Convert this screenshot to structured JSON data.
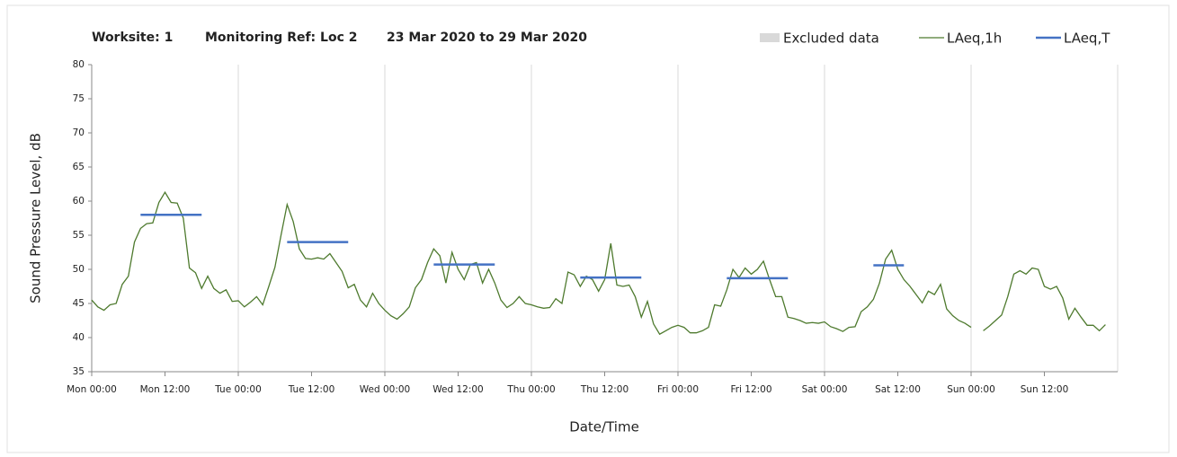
{
  "chart_data": {
    "type": "line",
    "title": [
      "Worksite: 1",
      "Monitoring Ref: Loc 2",
      "23 Mar 2020 to 29 Mar 2020"
    ],
    "xlabel": "Date/Time",
    "ylabel": "Sound Pressure Level, dB",
    "xlim": [
      0,
      168
    ],
    "xticks": [
      {
        "value": 0,
        "label": "Mon 00:00"
      },
      {
        "value": 12,
        "label": "Mon 12:00"
      },
      {
        "value": 24,
        "label": "Tue 00:00"
      },
      {
        "value": 36,
        "label": "Tue 12:00"
      },
      {
        "value": 48,
        "label": "Wed 00:00"
      },
      {
        "value": 60,
        "label": "Wed 12:00"
      },
      {
        "value": 72,
        "label": "Thu 00:00"
      },
      {
        "value": 84,
        "label": "Thu 12:00"
      },
      {
        "value": 96,
        "label": "Fri 00:00"
      },
      {
        "value": 108,
        "label": "Fri 12:00"
      },
      {
        "value": 120,
        "label": "Sat 00:00"
      },
      {
        "value": 132,
        "label": "Sat 12:00"
      },
      {
        "value": 144,
        "label": "Sun 00:00"
      },
      {
        "value": 156,
        "label": "Sun 12:00"
      }
    ],
    "ylim": [
      35,
      80
    ],
    "yticks": [
      35,
      40,
      45,
      50,
      55,
      60,
      65,
      70,
      75,
      80
    ],
    "xgrid": true,
    "series": [
      {
        "name": "Excluded data",
        "color": "#d9d9d9",
        "x": [],
        "values": []
      },
      {
        "name": "LAeq,1h",
        "color": "#4e7a2e",
        "x": [
          0,
          1,
          2,
          3,
          4,
          5,
          6,
          7,
          8,
          9,
          10,
          11,
          12,
          13,
          14,
          15,
          16,
          17,
          18,
          19,
          20,
          21,
          22,
          23,
          24,
          25,
          26,
          27,
          28,
          29,
          30,
          31,
          32,
          33,
          34,
          35,
          36,
          37,
          38,
          39,
          40,
          41,
          42,
          43,
          44,
          45,
          46,
          47,
          48,
          49,
          50,
          51,
          52,
          53,
          54,
          55,
          56,
          57,
          58,
          59,
          60,
          61,
          62,
          63,
          64,
          65,
          66,
          67,
          68,
          69,
          70,
          71,
          72,
          73,
          74,
          75,
          76,
          77,
          78,
          79,
          80,
          81,
          82,
          83,
          84,
          85,
          86,
          87,
          88,
          89,
          90,
          91,
          92,
          93,
          94,
          95,
          96,
          97,
          98,
          99,
          100,
          101,
          102,
          103,
          104,
          105,
          106,
          107,
          108,
          109,
          110,
          111,
          112,
          113,
          114,
          115,
          116,
          117,
          118,
          119,
          120,
          121,
          122,
          123,
          124,
          125,
          126,
          127,
          128,
          129,
          130,
          131,
          132,
          133,
          134,
          135,
          136,
          137,
          138,
          139,
          140,
          141,
          142,
          143,
          144,
          145,
          146,
          147,
          148,
          149,
          150,
          151,
          152,
          153,
          154,
          155,
          156,
          157,
          158,
          159,
          160,
          161,
          162,
          163,
          164,
          165,
          166
        ],
        "values": [
          45.5,
          44.5,
          44,
          44.8,
          45,
          47.8,
          49,
          54,
          56,
          56.7,
          56.8,
          59.8,
          61.3,
          59.8,
          59.7,
          57.5,
          50.2,
          49.5,
          47.2,
          49,
          47.2,
          46.5,
          47,
          45.3,
          45.4,
          44.5,
          45.2,
          46,
          44.8,
          47.5,
          50.3,
          55,
          59.5,
          57,
          53,
          51.6,
          51.5,
          51.7,
          51.5,
          52.3,
          51,
          49.7,
          47.3,
          47.8,
          45.5,
          44.5,
          46.5,
          45,
          44,
          43.2,
          42.7,
          43.5,
          44.5,
          47.3,
          48.5,
          51,
          53,
          52,
          48,
          52.5,
          50,
          48.5,
          50.7,
          51,
          48,
          50,
          48,
          45.5,
          44.4,
          45,
          46,
          45,
          44.8,
          44.5,
          44.3,
          44.4,
          45.7,
          45,
          49.6,
          49.2,
          47.5,
          49,
          48.5,
          46.8,
          48.5,
          53.8,
          47.7,
          47.5,
          47.7,
          46,
          43,
          45.3,
          42,
          40.5,
          41,
          41.5,
          41.8,
          41.5,
          40.7,
          40.7,
          41,
          41.5,
          44.8,
          44.6,
          47,
          50,
          48.8,
          50.2,
          49.3,
          50,
          51.2,
          48.5,
          46,
          46,
          43,
          42.8,
          42.5,
          42.1,
          42.2,
          42.1,
          42.3,
          41.6,
          41.3,
          40.9,
          41.5,
          41.6,
          43.8,
          44.5,
          45.6,
          48,
          51.5,
          52.8,
          50,
          48.5,
          47.5,
          46.3,
          45.1,
          46.8,
          46.3,
          47.8,
          44.2,
          43.2,
          42.5,
          42.1,
          41.5,
          null,
          41,
          41.7,
          42.5,
          43.3,
          46,
          49.3,
          49.8,
          49.3,
          50.2,
          50,
          47.5,
          47.1,
          47.5,
          45.8,
          42.7,
          44.3,
          43,
          41.8,
          41.8,
          41,
          41.9
        ]
      },
      {
        "name": "LAeq,T",
        "color": "#4472c4",
        "x": [
          8,
          18,
          19,
          32,
          42,
          43,
          56,
          66,
          67,
          80,
          90,
          91,
          104,
          114,
          115,
          128,
          133
        ],
        "values": [
          58,
          58,
          null,
          54,
          54,
          null,
          50.7,
          50.7,
          null,
          48.8,
          48.8,
          null,
          48.7,
          48.7,
          null,
          50.6,
          50.6
        ]
      }
    ]
  }
}
